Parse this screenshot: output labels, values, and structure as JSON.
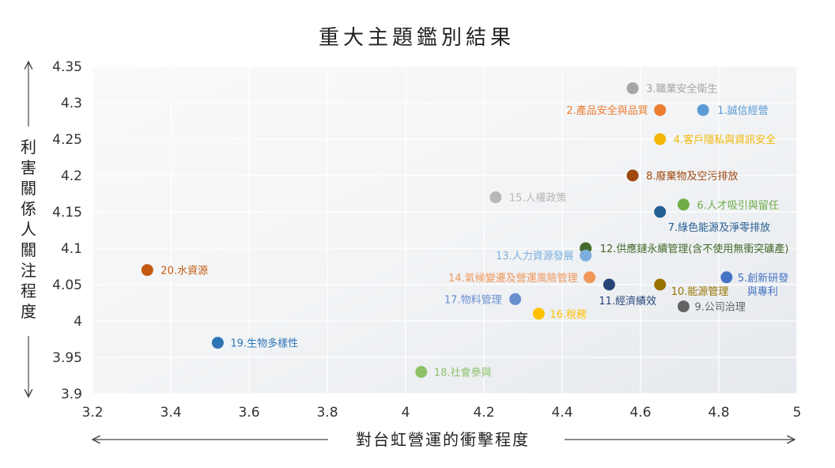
{
  "chart_data": {
    "type": "scatter",
    "title": "重大主題鑑別結果",
    "xlabel": "對台虹營運的衝擊程度",
    "ylabel": "利害關係人關注程度",
    "xlim": [
      3.2,
      5
    ],
    "ylim": [
      3.9,
      4.35
    ],
    "x_ticks": [
      "3.2",
      "3.4",
      "3.6",
      "3.8",
      "4",
      "4.2",
      "4.4",
      "4.6",
      "4.8",
      "5"
    ],
    "y_ticks": [
      "4.35",
      "4.3",
      "4.25",
      "4.2",
      "4.15",
      "4.1",
      "4.05",
      "4",
      "3.95",
      "3.9"
    ],
    "grid": true,
    "points": [
      {
        "label": "1.誠信經營",
        "x": 4.76,
        "y": 4.29,
        "color": "#5b9bd5"
      },
      {
        "label": "2.產品安全與品質",
        "x": 4.65,
        "y": 4.29,
        "color": "#ed7d31"
      },
      {
        "label": "3.職業安全衛生",
        "x": 4.58,
        "y": 4.32,
        "color": "#a5a5a5"
      },
      {
        "label": "4.客戶隱私與資訊安全",
        "x": 4.65,
        "y": 4.25,
        "color": "#f2b705"
      },
      {
        "label": "5.創新研發與專利",
        "x": 4.82,
        "y": 4.06,
        "color": "#4472c4"
      },
      {
        "label": "6.人才吸引與留任",
        "x": 4.71,
        "y": 4.16,
        "color": "#70ad47"
      },
      {
        "label": "7.綠色能源及淨零排放",
        "x": 4.65,
        "y": 4.15,
        "color": "#255e91"
      },
      {
        "label": "8.廢棄物及空污排放",
        "x": 4.58,
        "y": 4.2,
        "color": "#9e480e"
      },
      {
        "label": "9.公司治理",
        "x": 4.71,
        "y": 4.02,
        "color": "#636363"
      },
      {
        "label": "10.能源管理",
        "x": 4.65,
        "y": 4.05,
        "color": "#997300"
      },
      {
        "label": "11.經濟績效",
        "x": 4.52,
        "y": 4.05,
        "color": "#264478"
      },
      {
        "label": "12.供應鏈永續管理(含不使用無衝突礦產)",
        "x": 4.46,
        "y": 4.1,
        "color": "#43682b"
      },
      {
        "label": "13.人力資源發展",
        "x": 4.46,
        "y": 4.09,
        "color": "#7cafdd"
      },
      {
        "label": "14.氣候變遷及營運風險管理",
        "x": 4.47,
        "y": 4.06,
        "color": "#f1975a"
      },
      {
        "label": "15.人權政策",
        "x": 4.23,
        "y": 4.17,
        "color": "#b7b7b7"
      },
      {
        "label": "16.稅務",
        "x": 4.34,
        "y": 4.01,
        "color": "#ffc000"
      },
      {
        "label": "17.物料管理",
        "x": 4.28,
        "y": 4.03,
        "color": "#698ed0"
      },
      {
        "label": "18.社會參與",
        "x": 4.04,
        "y": 3.93,
        "color": "#8cc168"
      },
      {
        "label": "19.生物多樣性",
        "x": 3.52,
        "y": 3.97,
        "color": "#2e75b6"
      },
      {
        "label": "20.水資源",
        "x": 3.34,
        "y": 4.07,
        "color": "#c55a11"
      }
    ]
  }
}
